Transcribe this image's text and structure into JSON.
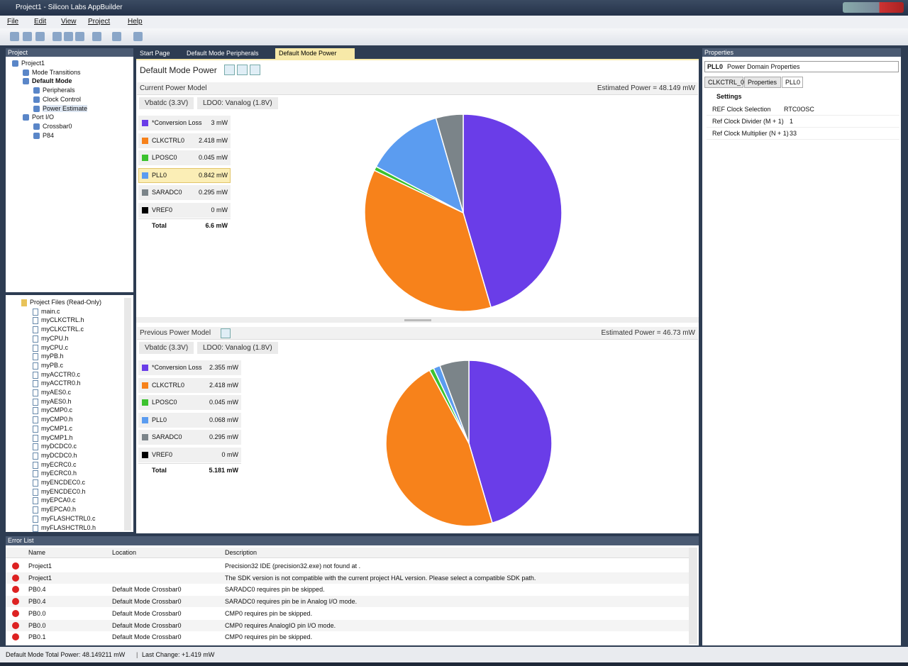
{
  "window": {
    "title": "Project1 - Silicon Labs AppBuilder"
  },
  "menu": [
    "File",
    "Edit",
    "View",
    "Project",
    "Help"
  ],
  "project_panel": {
    "title": "Project",
    "tree": [
      "Project1",
      "Mode Transitions",
      "Default Mode",
      "Peripherals",
      "Clock Control",
      "Power Estimate",
      "Port I/O",
      "Crossbar0",
      "P84"
    ],
    "files": [
      "Project Files (Read-Only)",
      "main.c",
      "myCLKCTRL.h",
      "myCLKCTRL.c",
      "myCPU.h",
      "myCPU.c",
      "myPB.h",
      "myPB.c",
      "myACCTR0.c",
      "myACCTR0.h",
      "myAES0.c",
      "myAES0.h",
      "myCMP0.c",
      "myCMP0.h",
      "myCMP1.c",
      "myCMP1.h",
      "myDCDC0.c",
      "myDCDC0.h",
      "myECRC0.c",
      "myECRC0.h",
      "myENCDEC0.c",
      "myENCDEC0.h",
      "myEPCA0.c",
      "myEPCA0.h",
      "myFLASHCTRL0.c",
      "myFLASHCTRL0.h"
    ]
  },
  "tabs": [
    "Start Page",
    "Default Mode Peripherals",
    "Default Mode Power"
  ],
  "editor": {
    "title": "Default Mode Power"
  },
  "chart_data": [
    {
      "type": "pie",
      "title": "Current Power Model",
      "annotation": "Estimated Power = 48.149 mW",
      "breadcrumbs": [
        "Vbatdc (3.3V)",
        "LDO0: Vanalog (1.8V)"
      ],
      "categories": [
        "*Conversion Loss",
        "CLKCTRL0",
        "LPOSC0",
        "PLL0",
        "SARADC0",
        "VREF0"
      ],
      "values": [
        3,
        2.418,
        0.045,
        0.842,
        0.295,
        0
      ],
      "value_labels": [
        "3 mW",
        "2.418 mW",
        "0.045 mW",
        "0.842 mW",
        "0.295 mW",
        "0 mW"
      ],
      "colors": [
        "#6a3de8",
        "#f7821b",
        "#3cc22f",
        "#5b9cf0",
        "#7b8489",
        "#000000"
      ],
      "total_label": "Total",
      "total_text": "6.6 mW"
    },
    {
      "type": "pie",
      "title": "Previous Power Model",
      "annotation": "Estimated Power = 46.73 mW",
      "breadcrumbs": [
        "Vbatdc (3.3V)",
        "LDO0: Vanalog (1.8V)"
      ],
      "categories": [
        "*Conversion Loss",
        "CLKCTRL0",
        "LPOSC0",
        "PLL0",
        "SARADC0",
        "VREF0"
      ],
      "values": [
        2.355,
        2.418,
        0.045,
        0.068,
        0.295,
        0
      ],
      "value_labels": [
        "2.355 mW",
        "2.418 mW",
        "0.045 mW",
        "0.068 mW",
        "0.295 mW",
        "0 mW"
      ],
      "colors": [
        "#6a3de8",
        "#f7821b",
        "#3cc22f",
        "#5b9cf0",
        "#7b8489",
        "#000000"
      ],
      "total_label": "Total",
      "total_text": "5.181 mW"
    }
  ],
  "properties": {
    "title": "Properties",
    "selector": [
      "PLL0",
      "Power Domain Properties"
    ],
    "tabs": [
      "CLKCTRL_0",
      "Properties",
      "PLL0"
    ],
    "section": "Settings",
    "rows": [
      [
        "REF Clock Selection",
        "RTC0OSC"
      ],
      [
        "Ref Clock Divider (M + 1)",
        "1"
      ],
      [
        "Ref Clock Multiplier (N + 1)",
        "33"
      ]
    ]
  },
  "error_list": {
    "title": "Error List",
    "columns": [
      "Name",
      "Location",
      "Description"
    ],
    "rows": [
      [
        "Project1",
        "",
        "Precision32 IDE (precision32.exe) not found at ."
      ],
      [
        "Project1",
        "",
        "The SDK version is not compatible with the current project HAL version. Please select a compatible SDK path."
      ],
      [
        "PB0.4",
        "Default Mode Crossbar0",
        "SARADC0 requires pin be skipped."
      ],
      [
        "PB0.4",
        "Default Mode Crossbar0",
        "SARADC0 requires pin be in Analog I/O mode."
      ],
      [
        "PB0.0",
        "Default Mode Crossbar0",
        "CMP0 requires pin be skipped."
      ],
      [
        "PB0.0",
        "Default Mode Crossbar0",
        "CMP0 requires AnalogIO pin I/O mode."
      ],
      [
        "PB0.1",
        "Default Mode Crossbar0",
        "CMP0 requires pin be skipped."
      ]
    ]
  },
  "status": [
    "Default Mode Total Power: 48.149211 mW",
    "Last Change: +1.419 mW"
  ]
}
